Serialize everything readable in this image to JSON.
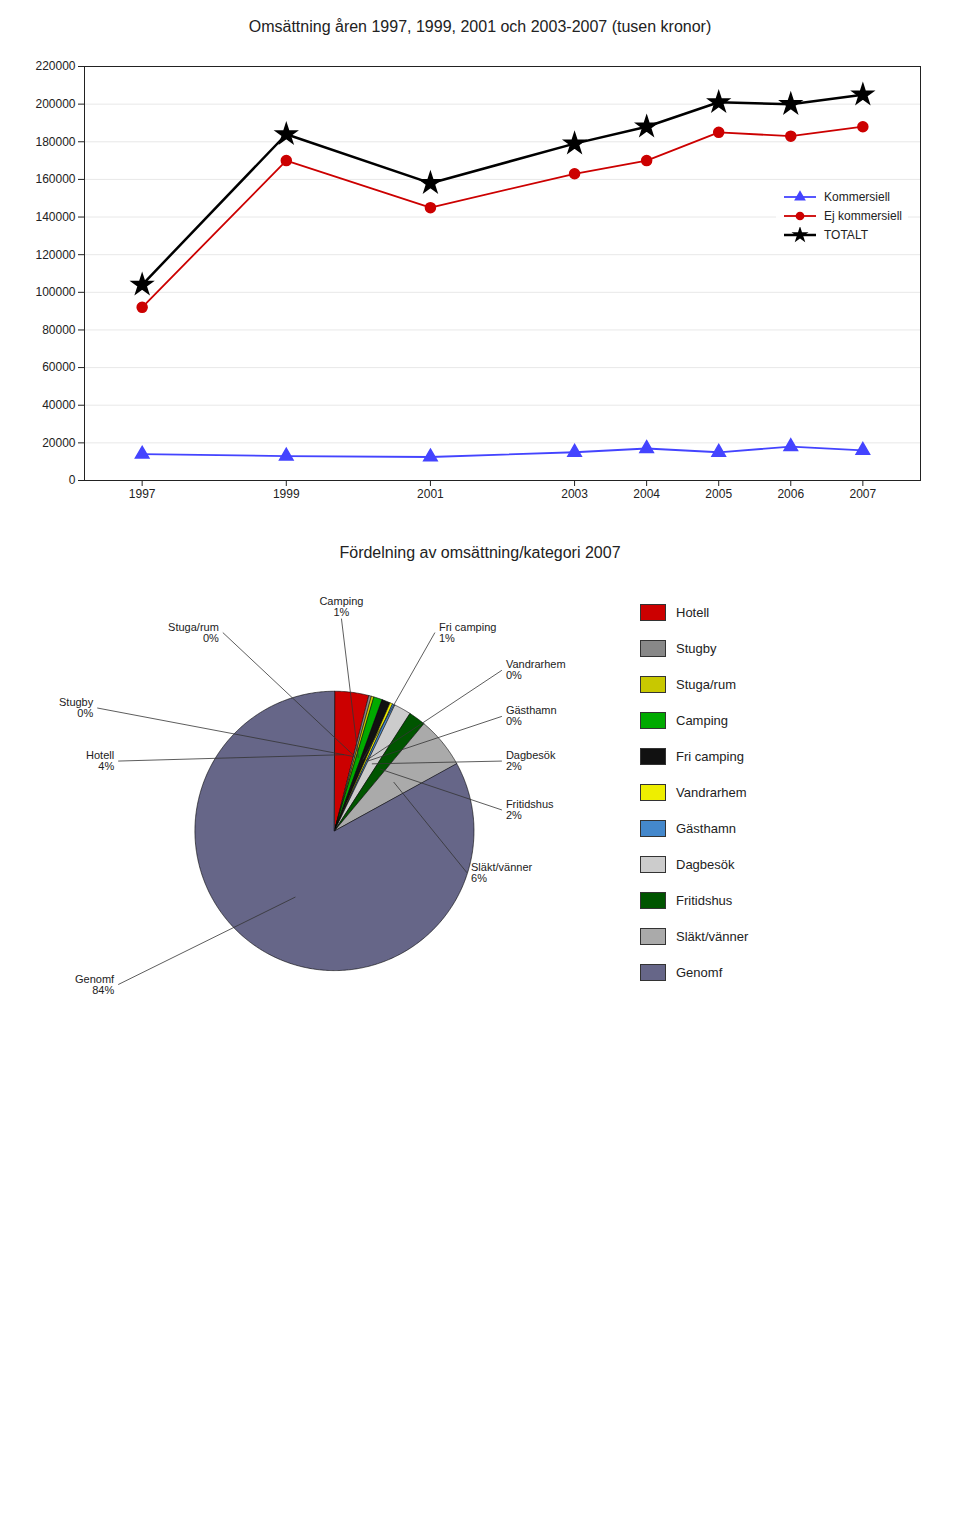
{
  "chart_data": [
    {
      "type": "line",
      "title": "Omsättning åren 1997, 1999, 2001 och 2003-2007 (tusen kronor)",
      "x": [
        1997,
        1999,
        2001,
        2003,
        2004,
        2005,
        2006,
        2007
      ],
      "series": [
        {
          "name": "Kommersiell",
          "color": "#4444FF",
          "marker": "triangle",
          "values": [
            14000,
            13000,
            12500,
            15000,
            17000,
            15000,
            18000,
            16000
          ]
        },
        {
          "name": "Ej kommersiell",
          "color": "#CC0000",
          "marker": "circle",
          "values": [
            92000,
            170000,
            145000,
            163000,
            170000,
            185000,
            183000,
            188000
          ]
        },
        {
          "name": "TOTALT",
          "color": "#000000",
          "marker": "star",
          "values": [
            104000,
            184000,
            158000,
            179000,
            188000,
            201000,
            200000,
            205000
          ]
        }
      ],
      "xlim": [
        1996.2,
        2007.8
      ],
      "xticks": [
        1997,
        1999,
        2001,
        2003,
        2004,
        2005,
        2006,
        2007
      ],
      "ylim": [
        0,
        220000
      ],
      "yticks": [
        0,
        20000,
        40000,
        60000,
        80000,
        100000,
        120000,
        140000,
        160000,
        180000,
        200000,
        220000
      ],
      "grid": true,
      "legend": "upper right"
    },
    {
      "type": "pie",
      "title": "Fördelning av omsättning/kategori 2007",
      "categories": [
        "Hotell",
        "Stugby",
        "Stuga/rum",
        "Camping",
        "Fri camping",
        "Vandrarhem",
        "Gästhamn",
        "Dagbesök",
        "Fritidshus",
        "Släkt/vänner",
        "Genomf"
      ],
      "values": [
        4,
        0.3,
        0.3,
        1,
        1,
        0.3,
        0.3,
        2,
        2,
        6,
        84
      ],
      "value_labels": [
        "4%",
        "0%",
        "0%",
        "1%",
        "1%",
        "0%",
        "0%",
        "2%",
        "2%",
        "6%",
        "84%"
      ],
      "colors": [
        "#CC0000",
        "#888888",
        "#C8C800",
        "#00AA00",
        "#111111",
        "#EEEE00",
        "#4488CC",
        "#CCCCCC",
        "#005500",
        "#AAAAAA",
        "#666688"
      ],
      "legend": "right"
    }
  ]
}
